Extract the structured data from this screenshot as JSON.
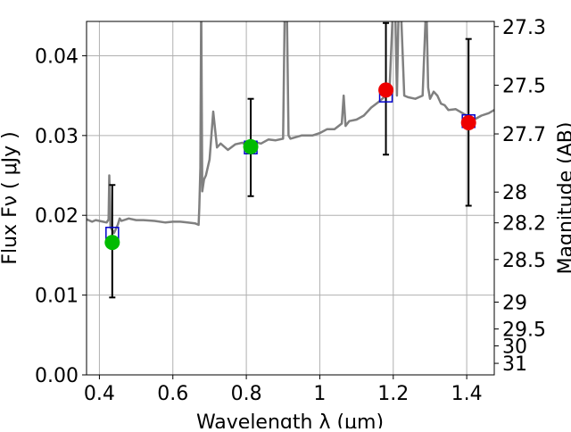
{
  "chart_data": {
    "type": "scatter",
    "xlabel": "Wavelength  λ (μm)",
    "ylabel": "Flux  Fν  ( μJy )",
    "ylabel_right": "Magnitude (AB)",
    "xlim": [
      0.365,
      1.475
    ],
    "ylim": [
      0.0,
      0.0443
    ],
    "grid": true,
    "x_ticks": [
      {
        "value": 0.4,
        "label": "0.4"
      },
      {
        "value": 0.6,
        "label": "0.6"
      },
      {
        "value": 0.8,
        "label": "0.8"
      },
      {
        "value": 1.0,
        "label": "1"
      },
      {
        "value": 1.2,
        "label": "1.2"
      },
      {
        "value": 1.4,
        "label": "1.4"
      }
    ],
    "y_ticks": [
      {
        "value": 0.0,
        "label": "0.00"
      },
      {
        "value": 0.01,
        "label": "0.01"
      },
      {
        "value": 0.02,
        "label": "0.02"
      },
      {
        "value": 0.03,
        "label": "0.03"
      },
      {
        "value": 0.04,
        "label": "0.04"
      }
    ],
    "mag_ticks": [
      {
        "value": 27.3,
        "label": "27.3"
      },
      {
        "value": 27.5,
        "label": "27.5"
      },
      {
        "value": 27.7,
        "label": "27.7"
      },
      {
        "value": 28.0,
        "label": "28"
      },
      {
        "value": 28.2,
        "label": "28.2"
      },
      {
        "value": 28.5,
        "label": "28.5"
      },
      {
        "value": 29.0,
        "label": "29"
      },
      {
        "value": 29.5,
        "label": "29.5"
      },
      {
        "value": 30.0,
        "label": "30"
      },
      {
        "value": 31.0,
        "label": "31"
      }
    ],
    "colors": {
      "template": "#808080",
      "model_box": "#0000cc",
      "green": "#00bb00",
      "red": "#ee0000",
      "errorbar": "#000000",
      "grid": "#b0b0b0"
    },
    "template_spectrum": {
      "x": [
        0.365,
        0.38,
        0.39,
        0.4,
        0.41,
        0.42,
        0.425,
        0.427,
        0.43,
        0.44,
        0.45,
        0.455,
        0.46,
        0.48,
        0.5,
        0.52,
        0.55,
        0.58,
        0.6,
        0.62,
        0.64,
        0.66,
        0.67,
        0.672,
        0.675,
        0.677,
        0.68,
        0.685,
        0.69,
        0.7,
        0.71,
        0.72,
        0.73,
        0.75,
        0.77,
        0.79,
        0.8,
        0.82,
        0.84,
        0.86,
        0.88,
        0.9,
        0.905,
        0.91,
        0.915,
        0.92,
        0.95,
        0.98,
        1.0,
        1.02,
        1.04,
        1.06,
        1.065,
        1.07,
        1.08,
        1.1,
        1.12,
        1.14,
        1.16,
        1.18,
        1.19,
        1.2,
        1.205,
        1.21,
        1.215,
        1.22,
        1.23,
        1.24,
        1.26,
        1.28,
        1.29,
        1.295,
        1.3,
        1.31,
        1.32,
        1.33,
        1.34,
        1.35,
        1.37,
        1.4,
        1.42,
        1.44,
        1.46,
        1.475
      ],
      "y": [
        0.0195,
        0.0192,
        0.0194,
        0.0193,
        0.0192,
        0.0191,
        0.0195,
        0.025,
        0.0185,
        0.0178,
        0.0188,
        0.0196,
        0.0193,
        0.0196,
        0.0194,
        0.0194,
        0.0193,
        0.0191,
        0.0192,
        0.0192,
        0.0191,
        0.019,
        0.0188,
        0.021,
        0.026,
        0.047,
        0.023,
        0.0245,
        0.025,
        0.027,
        0.033,
        0.0285,
        0.029,
        0.0282,
        0.0289,
        0.0291,
        0.0287,
        0.0292,
        0.029,
        0.0295,
        0.0294,
        0.0296,
        0.047,
        0.047,
        0.03,
        0.0296,
        0.03,
        0.03,
        0.0303,
        0.0308,
        0.0308,
        0.0315,
        0.035,
        0.0312,
        0.0318,
        0.032,
        0.0325,
        0.0335,
        0.0342,
        0.035,
        0.036,
        0.047,
        0.047,
        0.035,
        0.047,
        0.047,
        0.035,
        0.0348,
        0.0346,
        0.035,
        0.047,
        0.036,
        0.0346,
        0.0355,
        0.035,
        0.034,
        0.0338,
        0.0332,
        0.0333,
        0.0325,
        0.032,
        0.0325,
        0.0328,
        0.0332
      ]
    },
    "model_boxes": [
      {
        "x": 0.435,
        "y": 0.0177
      },
      {
        "x": 0.812,
        "y": 0.0285
      },
      {
        "x": 1.18,
        "y": 0.035
      },
      {
        "x": 1.405,
        "y": 0.0318
      }
    ],
    "points": [
      {
        "x": 0.435,
        "y": 0.0166,
        "yerr_low": 0.0097,
        "yerr_high": 0.0238,
        "color": "green"
      },
      {
        "x": 0.812,
        "y": 0.0286,
        "yerr_low": 0.0224,
        "yerr_high": 0.0346,
        "color": "green"
      },
      {
        "x": 1.18,
        "y": 0.0357,
        "yerr_low": 0.0276,
        "yerr_high": 0.0441,
        "color": "red"
      },
      {
        "x": 1.405,
        "y": 0.0316,
        "yerr_low": 0.0212,
        "yerr_high": 0.0421,
        "color": "red"
      }
    ]
  }
}
